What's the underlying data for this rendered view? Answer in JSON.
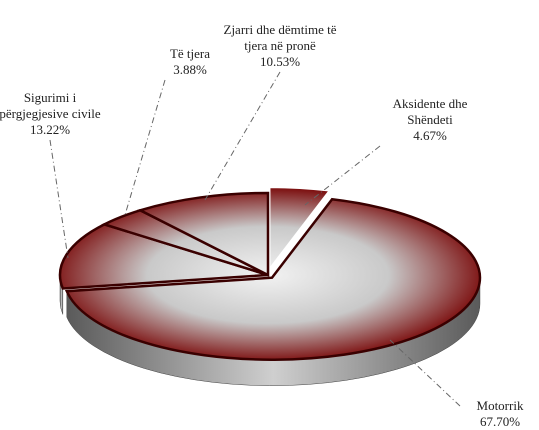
{
  "chart_data": {
    "type": "pie",
    "categories": [
      "Aksidente dhe Shëndeti",
      "Motorrik",
      "Sigurimi i përgjegjesive civile",
      "Të tjera",
      "Zjarri dhe dëmtime të tjera në pronë"
    ],
    "values": [
      4.67,
      67.7,
      13.22,
      3.88,
      10.53
    ],
    "value_labels": [
      "4.67%",
      "67.70%",
      "13.22%",
      "3.88%",
      "10.53%"
    ],
    "color": "#7a0a0a"
  }
}
